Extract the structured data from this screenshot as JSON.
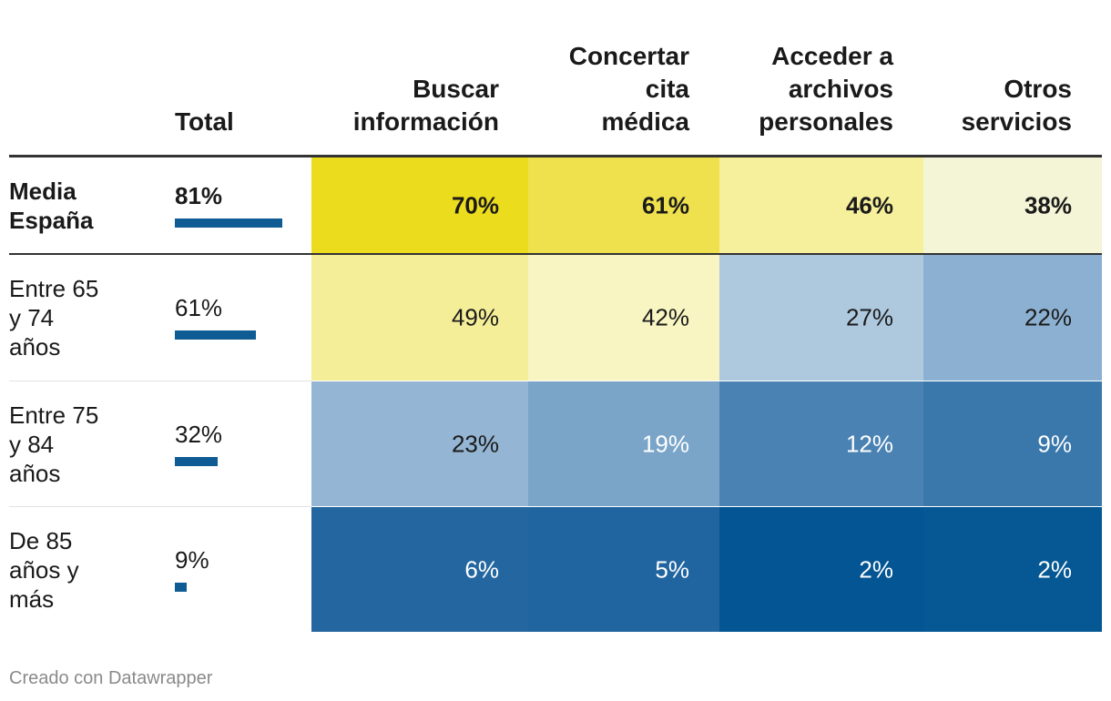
{
  "chart_data": {
    "type": "table",
    "columns": [
      "Total",
      "Buscar información",
      "Concertar cita médica",
      "Acceder a archivos personales",
      "Otros servicios"
    ],
    "rows": [
      {
        "label": "Media España",
        "bold": true,
        "total": "81%",
        "total_value": 81,
        "cells": [
          {
            "text": "70%",
            "value": 70,
            "bg": "#ecdc1e",
            "fg": "#1a1a1a"
          },
          {
            "text": "61%",
            "value": 61,
            "bg": "#efe14d",
            "fg": "#1a1a1a"
          },
          {
            "text": "46%",
            "value": 46,
            "bg": "#f6f09c",
            "fg": "#1a1a1a"
          },
          {
            "text": "38%",
            "value": 38,
            "bg": "#f4f4d6",
            "fg": "#1a1a1a"
          }
        ]
      },
      {
        "label": "Entre 65 y 74 años",
        "bold": false,
        "total": "61%",
        "total_value": 61,
        "cells": [
          {
            "text": "49%",
            "value": 49,
            "bg": "#f5ee98",
            "fg": "#1a1a1a"
          },
          {
            "text": "42%",
            "value": 42,
            "bg": "#f8f5c2",
            "fg": "#1a1a1a"
          },
          {
            "text": "27%",
            "value": 27,
            "bg": "#aec8de",
            "fg": "#1a1a1a"
          },
          {
            "text": "22%",
            "value": 22,
            "bg": "#8cb0d1",
            "fg": "#1a1a1a"
          }
        ]
      },
      {
        "label": "Entre 75 y 84 años",
        "bold": false,
        "total": "32%",
        "total_value": 32,
        "cells": [
          {
            "text": "23%",
            "value": 23,
            "bg": "#94b5d3",
            "fg": "#1a1a1a"
          },
          {
            "text": "19%",
            "value": 19,
            "bg": "#7aa5c8",
            "fg": "#ffffff"
          },
          {
            "text": "12%",
            "value": 12,
            "bg": "#4a83b3",
            "fg": "#ffffff"
          },
          {
            "text": "9%",
            "value": 9,
            "bg": "#3a78ab",
            "fg": "#ffffff"
          }
        ]
      },
      {
        "label": "De 85 años y más",
        "bold": false,
        "total": "9%",
        "total_value": 9,
        "cells": [
          {
            "text": "6%",
            "value": 6,
            "bg": "#2467a0",
            "fg": "#ffffff"
          },
          {
            "text": "5%",
            "value": 5,
            "bg": "#2165a0",
            "fg": "#ffffff"
          },
          {
            "text": "2%",
            "value": 2,
            "bg": "#035593",
            "fg": "#ffffff"
          },
          {
            "text": "2%",
            "value": 2,
            "bg": "#055893",
            "fg": "#ffffff"
          }
        ]
      }
    ],
    "bar_color": "#0f5b94",
    "total_max": 100
  },
  "footer": "Creado con Datawrapper"
}
